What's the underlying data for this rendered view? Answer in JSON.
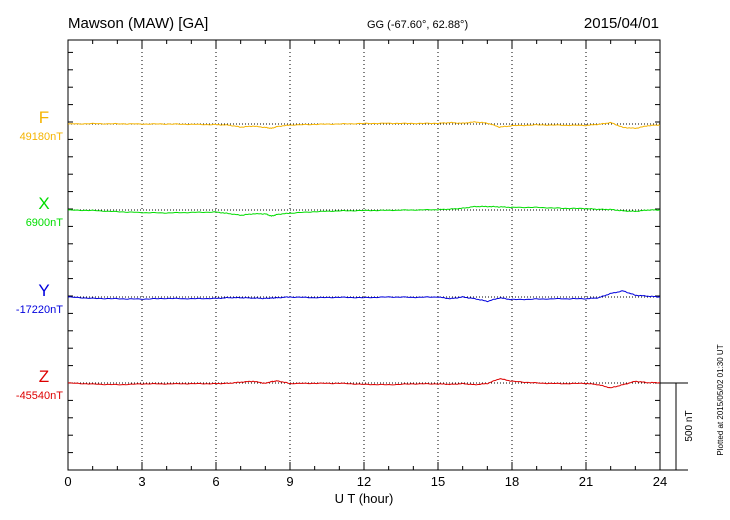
{
  "header": {
    "station": "Mawson (MAW)  [GA]",
    "coords": "GG (-67.60°,  62.88°)",
    "date": "2015/04/01"
  },
  "footer_note": "Plotted at 2015/05/02 01:30 UT",
  "chart_data": {
    "type": "line",
    "title": "Mawson (MAW)  [GA]",
    "xlabel": "U T (hour)",
    "xlim": [
      0,
      24
    ],
    "xticks": [
      0,
      3,
      6,
      9,
      12,
      15,
      18,
      21,
      24
    ],
    "x_tick_labels": [
      "0",
      "3",
      "6",
      "9",
      "12",
      "15",
      "18",
      "21",
      "24"
    ],
    "grid": "vertical dotted lines every 3 hours",
    "scale_bar": {
      "label": "500 nT",
      "value_nT": 500
    },
    "x": [
      0,
      1,
      2,
      3,
      4,
      5,
      6,
      6.5,
      7,
      7.5,
      8,
      8.25,
      8.5,
      9,
      10,
      11,
      12,
      13,
      14,
      15,
      15.5,
      16,
      16.5,
      17,
      17.5,
      18,
      19,
      20,
      21,
      21.5,
      22,
      22.5,
      23,
      23.5,
      24
    ],
    "series": [
      {
        "name": "F",
        "baseline_label": "49180nT",
        "color": "#f5b400",
        "baseline_nT": 49180,
        "values": [
          0,
          2,
          1,
          0,
          0,
          -2,
          -4,
          -6,
          -18,
          -12,
          -20,
          -25,
          -14,
          -6,
          -2,
          0,
          3,
          4,
          3,
          4,
          8,
          4,
          12,
          5,
          -18,
          -10,
          -5,
          -7,
          -8,
          -2,
          8,
          -20,
          -25,
          -10,
          -5
        ]
      },
      {
        "name": "X",
        "baseline_label": "6900nT",
        "color": "#00dd00",
        "baseline_nT": 6900,
        "values": [
          0,
          -3,
          -10,
          -15,
          -17,
          -14,
          -12,
          -20,
          -30,
          -22,
          -22,
          -35,
          -25,
          -18,
          -10,
          -5,
          -3,
          -2,
          0,
          2,
          5,
          10,
          20,
          20,
          18,
          15,
          15,
          10,
          8,
          4,
          3,
          -5,
          -8,
          0,
          0
        ]
      },
      {
        "name": "Y",
        "baseline_label": "-17220nT",
        "color": "#0000dd",
        "baseline_nT": -17220,
        "values": [
          0,
          -8,
          -10,
          -12,
          -8,
          -10,
          -8,
          -4,
          -4,
          -6,
          -8,
          -6,
          -4,
          0,
          -4,
          -2,
          -4,
          0,
          -2,
          0,
          -10,
          0,
          -10,
          -25,
          -5,
          -15,
          -12,
          -10,
          -10,
          -5,
          20,
          35,
          10,
          5,
          0
        ]
      },
      {
        "name": "Z",
        "baseline_label": "-45540nT",
        "color": "#dd0000",
        "baseline_nT": -45540,
        "values": [
          0,
          -6,
          -10,
          -5,
          -5,
          -4,
          -4,
          -2,
          5,
          10,
          -2,
          8,
          12,
          -3,
          -2,
          -2,
          -8,
          -10,
          -5,
          -5,
          -8,
          -4,
          -10,
          -3,
          25,
          10,
          0,
          -4,
          -2,
          -10,
          -28,
          -10,
          10,
          2,
          2
        ]
      }
    ]
  }
}
